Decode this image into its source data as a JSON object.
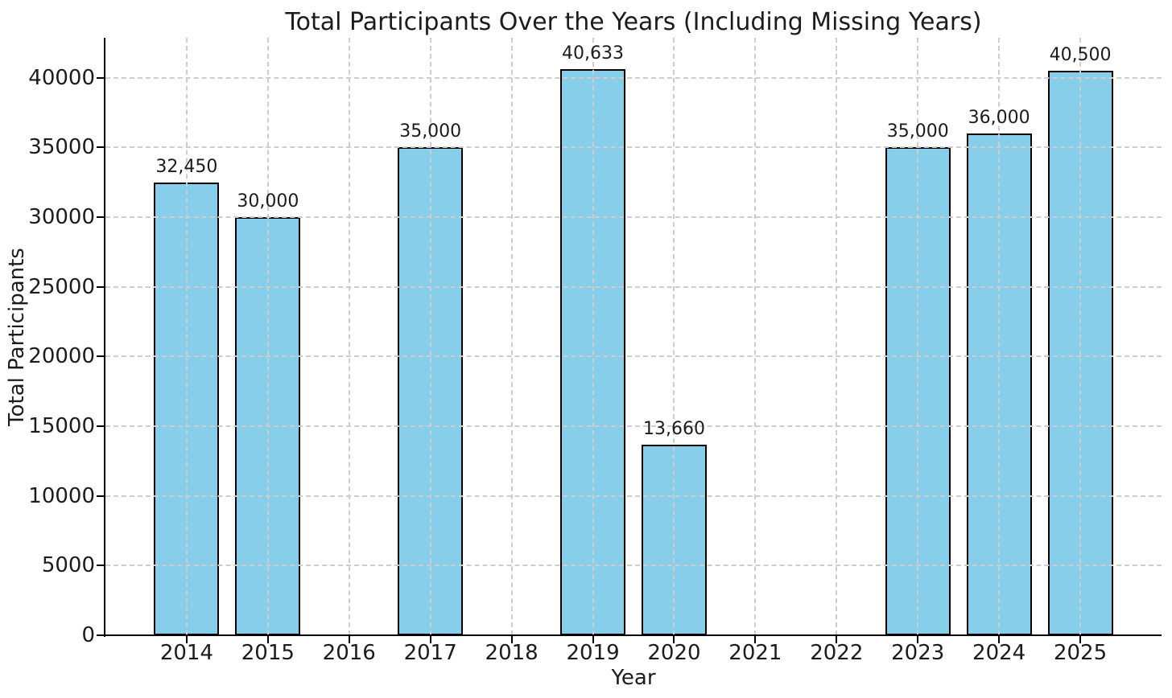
{
  "chart_data": {
    "type": "bar",
    "title": "Total Participants Over the Years (Including Missing Years)",
    "xlabel": "Year",
    "ylabel": "Total Participants",
    "categories": [
      "2014",
      "2015",
      "2016",
      "2017",
      "2018",
      "2019",
      "2020",
      "2021",
      "2022",
      "2023",
      "2024",
      "2025"
    ],
    "values": [
      32450,
      30000,
      null,
      35000,
      null,
      40633,
      13660,
      null,
      null,
      35000,
      36000,
      40500
    ],
    "bar_labels": [
      "32,450",
      "30,000",
      null,
      "35,000",
      null,
      "40,633",
      "13,660",
      null,
      null,
      "35,000",
      "36,000",
      "40,500"
    ],
    "yticks": [
      0,
      5000,
      10000,
      15000,
      20000,
      25000,
      30000,
      35000,
      40000
    ],
    "ytick_labels": [
      "0",
      "5000",
      "10000",
      "15000",
      "20000",
      "25000",
      "30000",
      "35000",
      "40000"
    ],
    "ylim": [
      0,
      42860
    ],
    "grid": true,
    "grid_over_bars": true,
    "legend": null,
    "colors": {
      "bar_fill": "#87CEEB",
      "bar_edge": "#000000",
      "grid": "#cdcdcd",
      "text": "#1c1c1c",
      "spine": "#000000"
    }
  }
}
